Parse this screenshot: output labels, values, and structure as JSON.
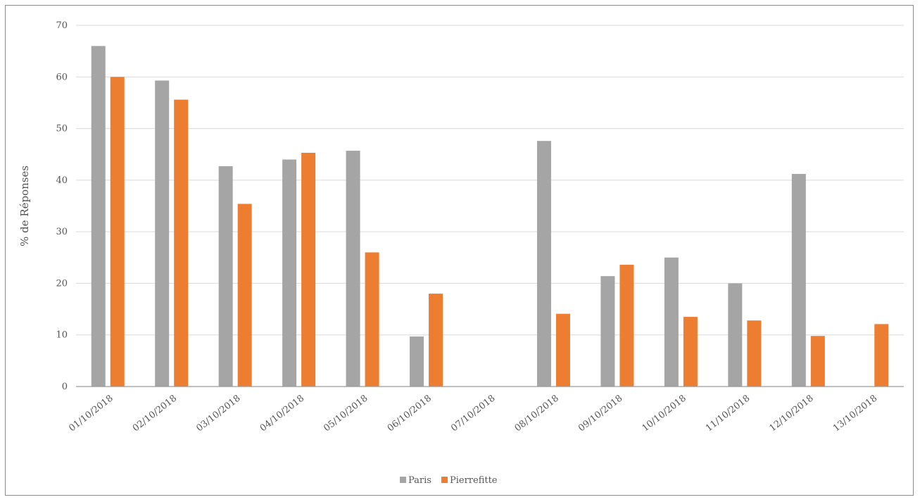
{
  "chart_data": {
    "type": "bar",
    "title": "",
    "xlabel": "",
    "ylabel": "% de Réponses",
    "ylim": [
      0,
      70
    ],
    "yticks": [
      0,
      10,
      20,
      30,
      40,
      50,
      60,
      70
    ],
    "grid": true,
    "legend_position": "bottom",
    "categories": [
      "01/10/2018",
      "02/10/2018",
      "03/10/2018",
      "04/10/2018",
      "05/10/2018",
      "06/10/2018",
      "07/10/2018",
      "08/10/2018",
      "09/10/2018",
      "10/10/2018",
      "11/10/2018",
      "12/10/2018",
      "13/10/2018"
    ],
    "series": [
      {
        "name": "Paris",
        "color": "#a5a5a5",
        "values": [
          66,
          59.3,
          42.7,
          44,
          45.7,
          9.7,
          null,
          47.6,
          21.4,
          25,
          20,
          41.2,
          null
        ]
      },
      {
        "name": "Pierrefitte",
        "color": "#ed7d31",
        "values": [
          60,
          55.6,
          35.4,
          45.3,
          26,
          18,
          null,
          14.1,
          23.6,
          13.5,
          12.8,
          9.8,
          12.1
        ]
      }
    ]
  }
}
